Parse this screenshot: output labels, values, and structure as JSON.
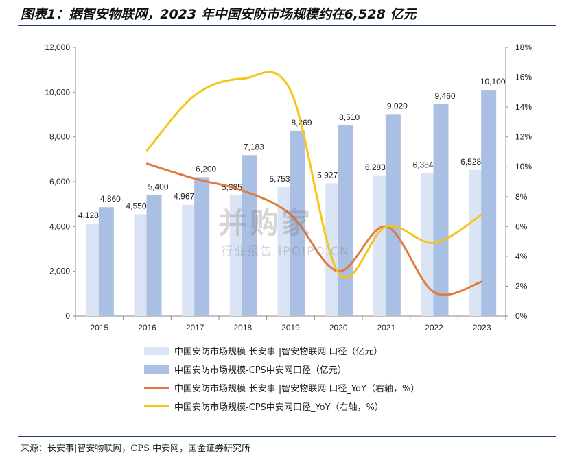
{
  "title": "图表1：据智安物联网，2023 年中国安防市场规模约在6,528 亿元",
  "source": "来源：长安事|智安物联网，CPS 中安网，国金证券研究所",
  "watermark": {
    "main": "并购家",
    "sub": "行业报告 IPOIPO.CN"
  },
  "colors": {
    "bar1": "#dbe4f4",
    "bar2": "#a9bfe3",
    "line1": "#e07b39",
    "line2": "#f5c518",
    "axis": "#888888"
  },
  "chart_data": {
    "type": "bar",
    "categories": [
      "2015",
      "2016",
      "2017",
      "2018",
      "2019",
      "2020",
      "2021",
      "2022",
      "2023"
    ],
    "series": [
      {
        "name": "中国安防市场规模-长安事 |智安物联网 口径（亿元）",
        "kind": "bar",
        "axis": "left",
        "values": [
          4128,
          4550,
          4967,
          5385,
          5753,
          5927,
          6283,
          6384,
          6528
        ],
        "labels": [
          "4,128",
          "4,550",
          "4,967",
          "5,385",
          "5,753",
          "5,927",
          "6,283",
          "6,384",
          "6,528"
        ]
      },
      {
        "name": "中国安防市场规模-CPS中安网口径（亿元）",
        "kind": "bar",
        "axis": "left",
        "values": [
          4860,
          5400,
          6200,
          7183,
          8269,
          8510,
          9020,
          9460,
          10100
        ],
        "labels": [
          "4,860",
          "5,400",
          "6,200",
          "7,183",
          "8,269",
          "8,510",
          "9,020",
          "9,460",
          "10,100"
        ]
      },
      {
        "name": "中国安防市场规模-长安事 |智安物联网 口径_YoY（右轴，%）",
        "kind": "line",
        "axis": "right",
        "values": [
          null,
          10.2,
          9.2,
          8.4,
          6.8,
          3.0,
          6.0,
          1.6,
          2.3
        ]
      },
      {
        "name": "中国安防市场规模-CPS中安网口径_YoY（右轴，%）",
        "kind": "line",
        "axis": "right",
        "values": [
          null,
          11.1,
          14.8,
          15.9,
          15.1,
          2.9,
          6.0,
          4.9,
          6.8
        ]
      }
    ],
    "y_left": {
      "min": 0,
      "max": 12000,
      "ticks": [
        "0",
        "2,000",
        "4,000",
        "6,000",
        "8,000",
        "10,000",
        "12,000"
      ]
    },
    "y_right": {
      "min": 0,
      "max": 18,
      "ticks": [
        "0%",
        "2%",
        "4%",
        "6%",
        "8%",
        "10%",
        "12%",
        "14%",
        "16%",
        "18%"
      ]
    },
    "legend_position": "bottom",
    "grid": false
  }
}
